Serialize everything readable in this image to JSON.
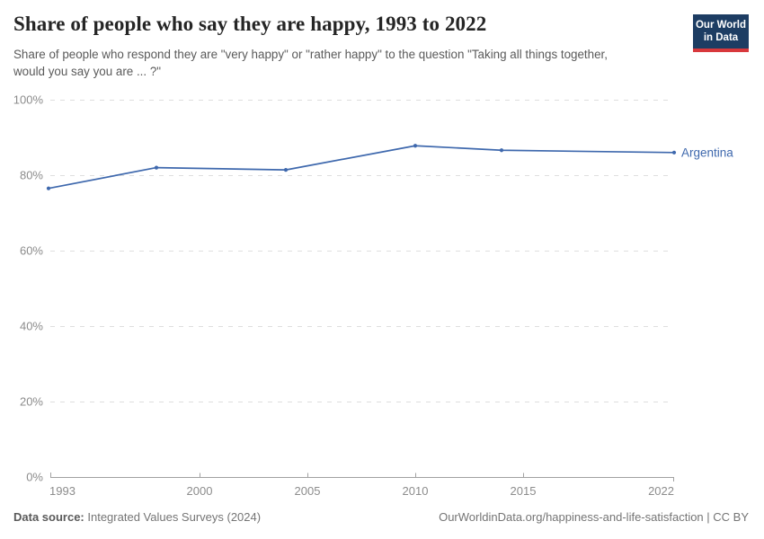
{
  "header": {
    "title": "Share of people who say they are happy, 1993 to 2022",
    "subtitle": "Share of people who respond they are \"very happy\" or \"rather happy\" to the question \"Taking all things together, would you say you are ... ?\"",
    "logo": {
      "line1": "Our World",
      "line2": "in Data"
    }
  },
  "chart_data": {
    "type": "line",
    "title": "Share of people who say they are happy, 1993 to 2022",
    "xlabel": "",
    "ylabel": "",
    "xlim": [
      1993,
      2022
    ],
    "ylim": [
      0,
      100
    ],
    "xticks": [
      1993,
      2000,
      2005,
      2010,
      2015,
      2022
    ],
    "yticks": [
      0,
      20,
      40,
      60,
      80,
      100
    ],
    "y_tick_suffix": "%",
    "grid": "horizontal-dashed",
    "legend_position": "end-of-line-label",
    "series": [
      {
        "name": "Argentina",
        "color": "#3e68ad",
        "x": [
          1993,
          1998,
          2004,
          2010,
          2014,
          2022
        ],
        "values": [
          76.5,
          82.0,
          81.4,
          87.8,
          86.6,
          86.0
        ]
      }
    ]
  },
  "footer": {
    "datasource_label": "Data source:",
    "datasource_value": "Integrated Values Surveys (2024)",
    "attribution": "OurWorldinData.org/happiness-and-life-satisfaction | CC BY"
  },
  "colors": {
    "accent_line": "#3e68ad",
    "grid": "#dedede",
    "axis": "#a1a1a1",
    "tick_label": "#8c8c8c",
    "logo_bg": "#1d3d63",
    "logo_red": "#d8383c"
  }
}
